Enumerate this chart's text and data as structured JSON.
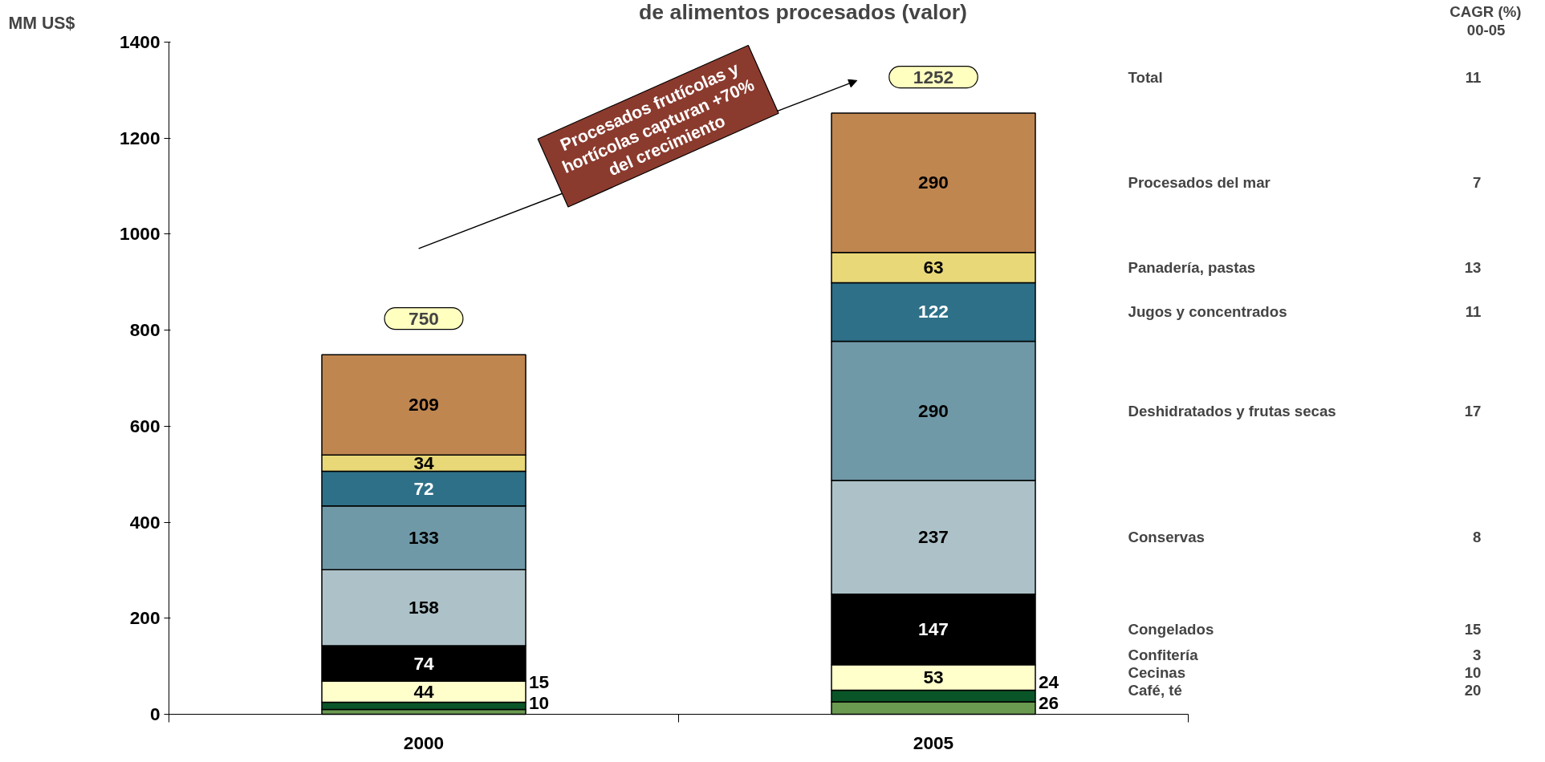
{
  "chart_data": {
    "type": "bar",
    "stacked": true,
    "title": "de alimentos procesados (valor)",
    "ylabel": "MM US$",
    "categories": [
      "2000",
      "2005"
    ],
    "series": [
      {
        "name": "Café, té",
        "color": "#6a9a50",
        "values": [
          10,
          26
        ]
      },
      {
        "name": "Cecinas",
        "color": "#0a5528",
        "values": [
          15,
          24
        ]
      },
      {
        "name": "Confitería",
        "color": "#ffffcc",
        "values": [
          44,
          53
        ]
      },
      {
        "name": "Congelados",
        "color": "#000000",
        "values": [
          74,
          147
        ]
      },
      {
        "name": "Conservas",
        "color": "#adc2c8",
        "values": [
          158,
          237
        ]
      },
      {
        "name": "Deshidratados y frutas secas",
        "color": "#7099a8",
        "values": [
          133,
          290
        ]
      },
      {
        "name": "Jugos y concentrados",
        "color": "#2e7088",
        "values": [
          72,
          122
        ]
      },
      {
        "name": "Panadería, pastas",
        "color": "#e8d878",
        "values": [
          34,
          63
        ]
      },
      {
        "name": "Procesados del mar",
        "color": "#c08650",
        "values": [
          209,
          290
        ]
      }
    ],
    "totals": [
      "750",
      "1252"
    ],
    "data_labels": true,
    "ylim": [
      0,
      1400
    ],
    "yticks": [
      0,
      200,
      400,
      600,
      800,
      1000,
      1200,
      1400
    ],
    "grid": false,
    "annotations": [
      "CAGR (%)",
      "00-05",
      "Total",
      "11",
      "20",
      "10",
      "3",
      "15",
      "8",
      "17",
      "11",
      "13",
      "7",
      "Procesados frutícolas y\nhortícolas capturan +70%\ndel crecimiento"
    ]
  }
}
